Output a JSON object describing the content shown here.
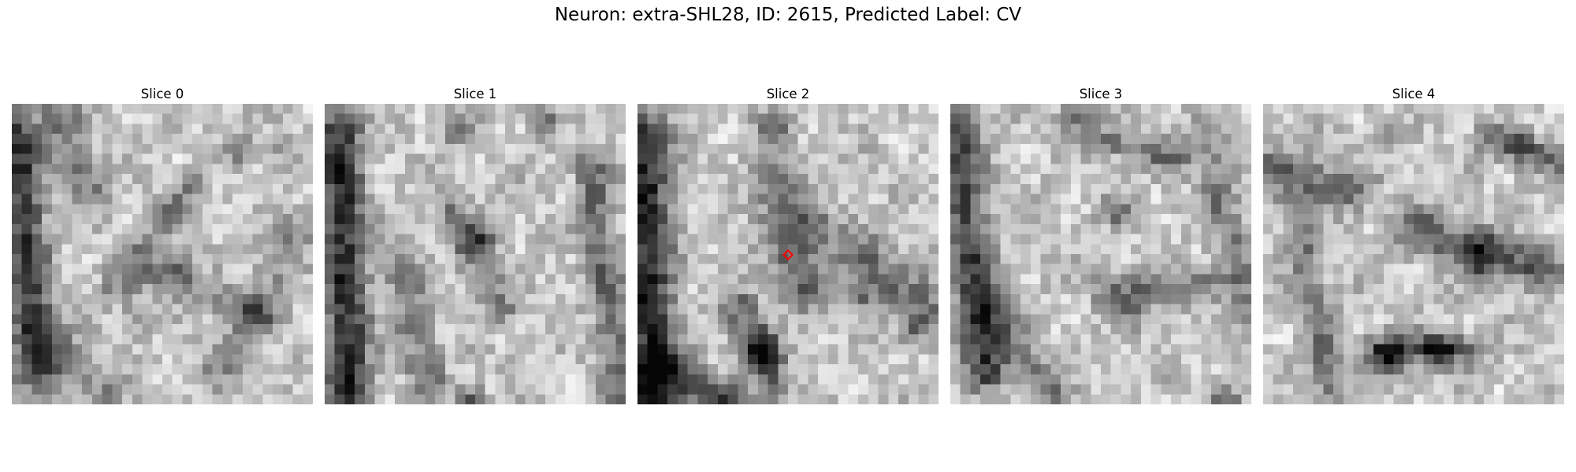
{
  "title": "Neuron: extra-SHL28, ID: 2615, Predicted Label: CV",
  "grid_size": 30,
  "colormap": "gray",
  "slices": [
    {
      "label": "Slice 0",
      "marker": false
    },
    {
      "label": "Slice 1",
      "marker": false
    },
    {
      "label": "Slice 2",
      "marker": true
    },
    {
      "label": "Slice 3",
      "marker": false
    },
    {
      "label": "Slice 4",
      "marker": false
    }
  ],
  "marker_color": "#ff0000"
}
